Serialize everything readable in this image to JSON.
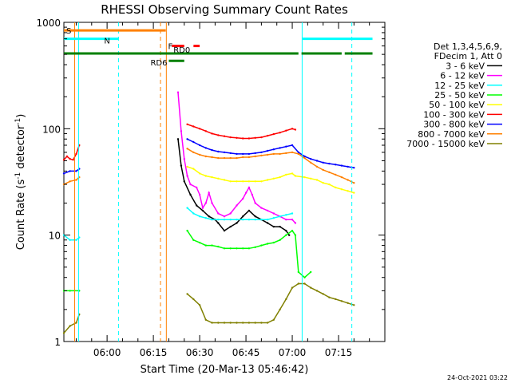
{
  "chart_data": {
    "type": "line",
    "title": "RHESSI Observing Summary Count Rates",
    "xlabel": "Start Time (20-Mar-13 05:46:42)",
    "ylabel_main": "Count Rate (s",
    "ylabel_sup": "-1",
    "ylabel_tail": " detector",
    "ylabel_end": ")",
    "yscale": "log",
    "ylim": [
      1,
      1000
    ],
    "xlim": [
      346,
      450
    ],
    "x_units": "minutes after 00:00 UT",
    "y_ticks": [
      {
        "value": 1,
        "label": "1"
      },
      {
        "value": 10,
        "label": "10"
      },
      {
        "value": 100,
        "label": "100"
      },
      {
        "value": 1000,
        "label": "1000"
      }
    ],
    "x_ticks": [
      {
        "value": 360,
        "label": "06:00"
      },
      {
        "value": 375,
        "label": "06:15"
      },
      {
        "value": 390,
        "label": "06:30"
      },
      {
        "value": 405,
        "label": "06:45"
      },
      {
        "value": 420,
        "label": "07:00"
      },
      {
        "value": 435,
        "label": "07:15"
      }
    ],
    "legend_header": [
      "Det 1,3,4,5,6,9,",
      "FDecim 1, Att 0"
    ],
    "series": [
      {
        "name": "3 - 6 keV",
        "color": "#000000",
        "points": [
          [
            383,
            80
          ],
          [
            384,
            45
          ],
          [
            385,
            32
          ],
          [
            387,
            24
          ],
          [
            389,
            19
          ],
          [
            391,
            17
          ],
          [
            393,
            15
          ],
          [
            395,
            14
          ],
          [
            396,
            13
          ],
          [
            398,
            11
          ],
          [
            400,
            12
          ],
          [
            402,
            13
          ],
          [
            404,
            15
          ],
          [
            406,
            17
          ],
          [
            408,
            15
          ],
          [
            410,
            14
          ],
          [
            412,
            13
          ],
          [
            414,
            12
          ],
          [
            416,
            12
          ],
          [
            418,
            11
          ],
          [
            419,
            10
          ]
        ]
      },
      {
        "name": "6 - 12 keV",
        "color": "#ff00ff",
        "points": [
          [
            383,
            220
          ],
          [
            384,
            95
          ],
          [
            385,
            52
          ],
          [
            386,
            36
          ],
          [
            387,
            30
          ],
          [
            389,
            28
          ],
          [
            390,
            24
          ],
          [
            391,
            18
          ],
          [
            392,
            20
          ],
          [
            393,
            25
          ],
          [
            394,
            20
          ],
          [
            396,
            16
          ],
          [
            398,
            15
          ],
          [
            400,
            16
          ],
          [
            402,
            19
          ],
          [
            404,
            22
          ],
          [
            405,
            25
          ],
          [
            406,
            28
          ],
          [
            407,
            24
          ],
          [
            408,
            20
          ],
          [
            410,
            18
          ],
          [
            412,
            17
          ],
          [
            414,
            16
          ],
          [
            416,
            15
          ],
          [
            418,
            14
          ],
          [
            420,
            14
          ],
          [
            421,
            13
          ]
        ]
      },
      {
        "name": "12 - 25 keV",
        "color": "#00ffff",
        "points": [
          [
            346,
            10
          ],
          [
            348,
            9
          ],
          [
            350,
            9
          ],
          [
            351,
            9.5
          ],
          [
            386,
            18
          ],
          [
            388,
            16
          ],
          [
            390,
            15
          ],
          [
            392,
            14.5
          ],
          [
            394,
            14
          ],
          [
            396,
            14
          ],
          [
            398,
            14
          ],
          [
            400,
            14
          ],
          [
            402,
            14
          ],
          [
            404,
            14
          ],
          [
            406,
            14
          ],
          [
            408,
            14
          ],
          [
            410,
            14
          ],
          [
            412,
            14
          ],
          [
            414,
            14.5
          ],
          [
            416,
            15
          ],
          [
            418,
            15.5
          ],
          [
            420,
            16
          ]
        ]
      },
      {
        "name": "25 - 50 keV",
        "color": "#00ff00",
        "points": [
          [
            346,
            3
          ],
          [
            348,
            3
          ],
          [
            351,
            3
          ],
          [
            386,
            11
          ],
          [
            388,
            9
          ],
          [
            390,
            8.5
          ],
          [
            392,
            8
          ],
          [
            394,
            8
          ],
          [
            396,
            7.8
          ],
          [
            398,
            7.5
          ],
          [
            400,
            7.5
          ],
          [
            402,
            7.5
          ],
          [
            404,
            7.5
          ],
          [
            406,
            7.5
          ],
          [
            408,
            7.7
          ],
          [
            410,
            8
          ],
          [
            412,
            8.3
          ],
          [
            414,
            8.5
          ],
          [
            416,
            9
          ],
          [
            418,
            10
          ],
          [
            420,
            11
          ],
          [
            421,
            10
          ],
          [
            422,
            4.5
          ],
          [
            424,
            4
          ],
          [
            426,
            4.5
          ]
        ]
      },
      {
        "name": "50 - 100 keV",
        "color": "#ffff00",
        "points": [
          [
            386,
            44
          ],
          [
            388,
            42
          ],
          [
            390,
            38
          ],
          [
            392,
            36
          ],
          [
            394,
            35
          ],
          [
            396,
            34
          ],
          [
            398,
            33
          ],
          [
            400,
            32
          ],
          [
            402,
            32
          ],
          [
            404,
            32
          ],
          [
            406,
            32
          ],
          [
            408,
            32
          ],
          [
            410,
            32
          ],
          [
            412,
            33
          ],
          [
            414,
            34
          ],
          [
            416,
            35
          ],
          [
            418,
            37
          ],
          [
            420,
            38
          ],
          [
            421,
            36
          ],
          [
            424,
            35
          ],
          [
            426,
            34
          ],
          [
            428,
            33
          ],
          [
            430,
            31
          ],
          [
            432,
            30
          ],
          [
            434,
            28
          ],
          [
            436,
            27
          ],
          [
            438,
            26
          ],
          [
            440,
            25
          ]
        ]
      },
      {
        "name": "100 - 300 keV",
        "color": "#ff0000",
        "points": [
          [
            346,
            51
          ],
          [
            347,
            55
          ],
          [
            348,
            52
          ],
          [
            349,
            51
          ],
          [
            350,
            58
          ],
          [
            351,
            70
          ],
          [
            386,
            110
          ],
          [
            388,
            105
          ],
          [
            390,
            100
          ],
          [
            392,
            95
          ],
          [
            394,
            90
          ],
          [
            396,
            87
          ],
          [
            398,
            85
          ],
          [
            400,
            83
          ],
          [
            402,
            82
          ],
          [
            404,
            81
          ],
          [
            406,
            81
          ],
          [
            408,
            82
          ],
          [
            410,
            83
          ],
          [
            412,
            86
          ],
          [
            414,
            89
          ],
          [
            416,
            92
          ],
          [
            418,
            96
          ],
          [
            420,
            100
          ],
          [
            421,
            98
          ]
        ]
      },
      {
        "name": "300 - 800 keV",
        "color": "#0000ff",
        "points": [
          [
            346,
            38
          ],
          [
            348,
            40
          ],
          [
            350,
            40
          ],
          [
            351,
            42
          ],
          [
            386,
            80
          ],
          [
            388,
            75
          ],
          [
            390,
            70
          ],
          [
            392,
            66
          ],
          [
            394,
            63
          ],
          [
            396,
            61
          ],
          [
            398,
            60
          ],
          [
            400,
            59
          ],
          [
            402,
            58
          ],
          [
            404,
            58
          ],
          [
            406,
            58
          ],
          [
            408,
            59
          ],
          [
            410,
            60
          ],
          [
            412,
            62
          ],
          [
            414,
            64
          ],
          [
            416,
            66
          ],
          [
            418,
            68
          ],
          [
            420,
            70
          ],
          [
            422,
            60
          ],
          [
            424,
            55
          ],
          [
            426,
            52
          ],
          [
            428,
            50
          ],
          [
            430,
            48
          ],
          [
            432,
            47
          ],
          [
            434,
            46
          ],
          [
            436,
            45
          ],
          [
            438,
            44
          ],
          [
            440,
            43
          ]
        ]
      },
      {
        "name": "800 - 7000 keV",
        "color": "#ff8000",
        "points": [
          [
            346,
            30
          ],
          [
            348,
            32
          ],
          [
            350,
            33
          ],
          [
            351,
            35
          ],
          [
            386,
            65
          ],
          [
            388,
            60
          ],
          [
            390,
            57
          ],
          [
            392,
            55
          ],
          [
            394,
            54
          ],
          [
            396,
            53
          ],
          [
            398,
            53
          ],
          [
            400,
            53
          ],
          [
            402,
            53
          ],
          [
            404,
            54
          ],
          [
            406,
            54
          ],
          [
            408,
            55
          ],
          [
            410,
            56
          ],
          [
            412,
            57
          ],
          [
            414,
            58
          ],
          [
            416,
            58
          ],
          [
            418,
            59
          ],
          [
            420,
            60
          ],
          [
            422,
            58
          ],
          [
            424,
            53
          ],
          [
            426,
            48
          ],
          [
            428,
            44
          ],
          [
            430,
            41
          ],
          [
            432,
            39
          ],
          [
            434,
            37
          ],
          [
            436,
            35
          ],
          [
            438,
            33
          ],
          [
            440,
            31
          ]
        ]
      },
      {
        "name": "7000 - 15000 keV",
        "color": "#808000",
        "points": [
          [
            346,
            1.2
          ],
          [
            348,
            1.4
          ],
          [
            350,
            1.5
          ],
          [
            351,
            1.8
          ],
          [
            386,
            2.8
          ],
          [
            388,
            2.5
          ],
          [
            390,
            2.2
          ],
          [
            392,
            1.6
          ],
          [
            394,
            1.5
          ],
          [
            396,
            1.5
          ],
          [
            398,
            1.5
          ],
          [
            400,
            1.5
          ],
          [
            402,
            1.5
          ],
          [
            404,
            1.5
          ],
          [
            406,
            1.5
          ],
          [
            408,
            1.5
          ],
          [
            410,
            1.5
          ],
          [
            412,
            1.5
          ],
          [
            414,
            1.6
          ],
          [
            416,
            2
          ],
          [
            418,
            2.5
          ],
          [
            420,
            3.2
          ],
          [
            422,
            3.5
          ],
          [
            424,
            3.5
          ],
          [
            426,
            3.2
          ],
          [
            428,
            3
          ],
          [
            430,
            2.8
          ],
          [
            432,
            2.6
          ],
          [
            434,
            2.5
          ],
          [
            436,
            2.4
          ],
          [
            438,
            2.3
          ],
          [
            440,
            2.2
          ]
        ]
      }
    ],
    "vlines": [
      {
        "x": 349.5,
        "color": "#ff8000",
        "style": "solid"
      },
      {
        "x": 350.8,
        "color": "#00ffff",
        "style": "solid"
      },
      {
        "x": 363.7,
        "color": "#00ffff",
        "style": "dashed"
      },
      {
        "x": 377.3,
        "color": "#ff8000",
        "style": "dashed"
      },
      {
        "x": 379.2,
        "color": "#ff8000",
        "style": "solid"
      },
      {
        "x": 423.2,
        "color": "#00ffff",
        "style": "solid"
      },
      {
        "x": 439.3,
        "color": "#00ffff",
        "style": "dashed"
      }
    ],
    "state_bars": [
      {
        "label": "S",
        "color": "#ff8000",
        "segments": [
          [
            346,
            379
          ]
        ],
        "level": 840
      },
      {
        "label": "N",
        "color": "#00ffff",
        "segments": [
          [
            346,
            363.7
          ],
          [
            423.2,
            446
          ]
        ],
        "level": 700
      },
      {
        "label": "F",
        "color": "#ff0000",
        "segments": [
          [
            381,
            385
          ],
          [
            388,
            390
          ]
        ],
        "level": 600
      },
      {
        "label": "RD0",
        "color": "#008000",
        "segments": [
          [
            346,
            422
          ],
          [
            423,
            436
          ],
          [
            437,
            446
          ]
        ],
        "level": 510
      },
      {
        "label": "RD6",
        "color": "#008000",
        "segments": [
          [
            380,
            385
          ]
        ],
        "level": 435
      }
    ],
    "footer_date": "24-Oct-2021 03:22"
  }
}
